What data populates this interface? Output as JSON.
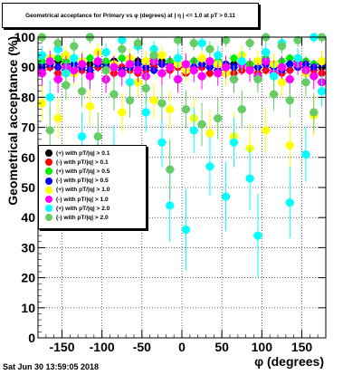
{
  "title": "Geometrical acceptance for Primary vs φ (degrees) at | η | <= 1.0 at pT > 0.11",
  "timestamp": "Sat Jun 30 13:59:05 2018",
  "chart_data": {
    "type": "scatter",
    "xlabel": "φ (degrees)",
    "ylabel": "Geometrical acceptance (%)",
    "xlim": [
      -180,
      180
    ],
    "ylim": [
      0,
      100
    ],
    "xticks": [
      "-150",
      "-100",
      "-50",
      "0",
      "50",
      "100",
      "150"
    ],
    "yticks": [
      "0",
      "10",
      "20",
      "30",
      "40",
      "50",
      "60",
      "70",
      "80",
      "90",
      "100"
    ],
    "grid": true,
    "legend_position": "center-left",
    "x": [
      -175,
      -165,
      -155,
      -145,
      -135,
      -125,
      -115,
      -105,
      -95,
      -85,
      -75,
      -65,
      -55,
      -45,
      -35,
      -25,
      -15,
      -5,
      5,
      15,
      25,
      35,
      45,
      55,
      65,
      75,
      85,
      95,
      105,
      115,
      125,
      135,
      145,
      155,
      165,
      175
    ],
    "series": [
      {
        "name": "(+) with pT/|q| > 0.1",
        "color": "#000000",
        "values": [
          91,
          90,
          92,
          91,
          90,
          92,
          91,
          90,
          91,
          92,
          90,
          91,
          92,
          90,
          91,
          92,
          91,
          90,
          91,
          92,
          90,
          91,
          92,
          90,
          91,
          92,
          91,
          90,
          92,
          91,
          90,
          91,
          92,
          90,
          91,
          90
        ]
      },
      {
        "name": "(-) with pT/|q| > 0.1",
        "color": "#ff0000",
        "values": [
          89,
          90,
          88,
          89,
          90,
          89,
          88,
          90,
          89,
          88,
          90,
          89,
          88,
          89,
          90,
          88,
          89,
          90,
          88,
          89,
          90,
          88,
          89,
          90,
          88,
          89,
          90,
          88,
          89,
          90,
          88,
          89,
          90,
          88,
          89,
          88
        ]
      },
      {
        "name": "(+) with pT/|q| > 0.5",
        "color": "#00ee00",
        "values": [
          92,
          91,
          93,
          92,
          91,
          92,
          93,
          91,
          92,
          91,
          93,
          92,
          91,
          92,
          93,
          91,
          92,
          93,
          91,
          92,
          93,
          91,
          92,
          91,
          93,
          92,
          91,
          92,
          93,
          91,
          92,
          93,
          91,
          92,
          91,
          92
        ]
      },
      {
        "name": "(-) with pT/|q| > 0.5",
        "color": "#0000ff",
        "values": [
          90,
          91,
          90,
          89,
          91,
          90,
          89,
          91,
          90,
          91,
          89,
          90,
          91,
          90,
          89,
          91,
          90,
          91,
          89,
          90,
          91,
          90,
          89,
          91,
          90,
          91,
          89,
          90,
          91,
          90,
          89,
          91,
          90,
          91,
          90,
          91
        ]
      },
      {
        "name": "(+) with pT/|q| > 1.0",
        "color": "#ffff00",
        "values": [
          78,
          93,
          73,
          94,
          88,
          92,
          77,
          95,
          86,
          91,
          75,
          93,
          85,
          92,
          79,
          94,
          76,
          91,
          89,
          73,
          93,
          68,
          91,
          88,
          67,
          94,
          63,
          92,
          69,
          91,
          85,
          64,
          93,
          88,
          74,
          92
        ]
      },
      {
        "name": "(-) with pT/|q| > 1.0",
        "color": "#ff00ff",
        "values": [
          88,
          92,
          86,
          90,
          89,
          91,
          87,
          92,
          86,
          90,
          88,
          91,
          89,
          87,
          92,
          88,
          90,
          86,
          91,
          89,
          87,
          92,
          88,
          90,
          86,
          91,
          89,
          87,
          92,
          88,
          90,
          86,
          91,
          89,
          87,
          85
        ]
      },
      {
        "name": "(+) with pT/|q| > 2.0",
        "color": "#00ffff",
        "values": [
          94,
          80,
          96,
          88,
          93,
          67,
          100,
          58,
          95,
          62,
          99,
          85,
          97,
          75,
          96,
          65,
          44,
          93,
          36,
          69,
          98,
          57,
          94,
          47,
          65,
          92,
          53,
          34,
          95,
          87,
          98,
          45,
          93,
          61,
          100,
          82
        ]
      },
      {
        "name": "(-) with pT/|q| > 2.0",
        "color": "#66cc66",
        "values": [
          100,
          69,
          98,
          84,
          97,
          82,
          100,
          67,
          89,
          81,
          96,
          79,
          98,
          83,
          94,
          78,
          56,
          99,
          76,
          98,
          71,
          96,
          73,
          99,
          86,
          76,
          98,
          86,
          100,
          81,
          97,
          79,
          99,
          85,
          75,
          100
        ]
      }
    ]
  }
}
